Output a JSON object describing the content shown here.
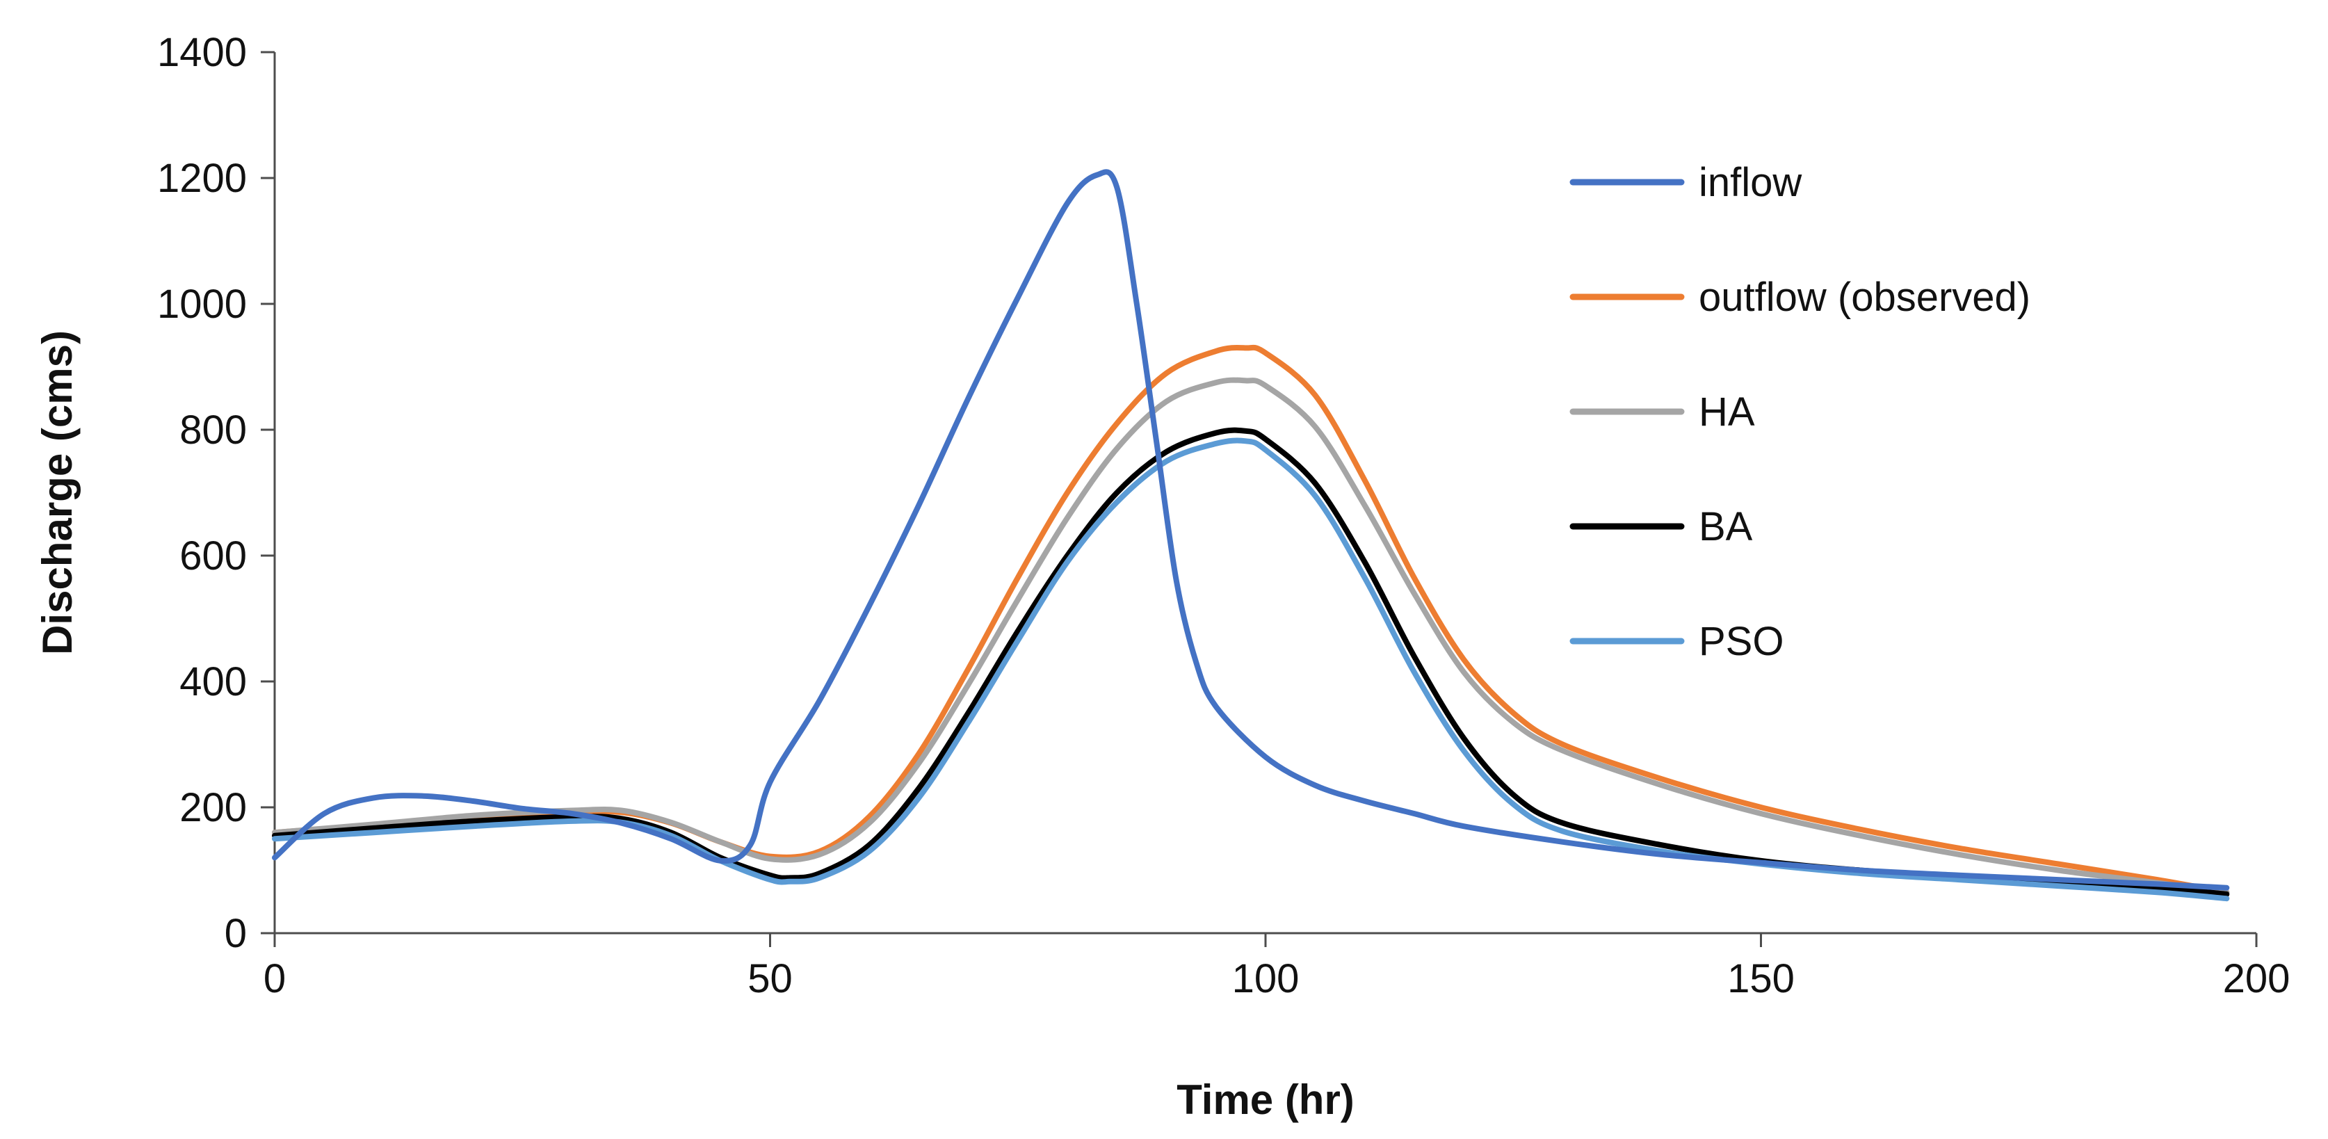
{
  "chart_data": {
    "type": "line",
    "title": "",
    "xlabel": "Time (hr)",
    "ylabel": "Discharge (cms)",
    "xlim": [
      0,
      200
    ],
    "ylim": [
      0,
      1400
    ],
    "xticks": [
      0,
      50,
      100,
      150,
      200
    ],
    "yticks": [
      0,
      200,
      400,
      600,
      800,
      1000,
      1200,
      1400
    ],
    "grid": false,
    "legend_position": "right",
    "series": [
      {
        "name": "inflow",
        "color": "#4472c4",
        "x": [
          0,
          5,
          10,
          15,
          20,
          25,
          30,
          35,
          40,
          45,
          48,
          50,
          55,
          60,
          65,
          70,
          75,
          80,
          83,
          85,
          87,
          89,
          91,
          93,
          95,
          100,
          105,
          110,
          115,
          120,
          130,
          140,
          150,
          160,
          170,
          180,
          190,
          197
        ],
        "y": [
          120,
          190,
          215,
          218,
          210,
          198,
          190,
          175,
          150,
          115,
          140,
          240,
          370,
          520,
          680,
          850,
          1010,
          1160,
          1205,
          1185,
          1000,
          780,
          560,
          430,
          360,
          280,
          235,
          210,
          190,
          170,
          145,
          125,
          112,
          100,
          92,
          85,
          78,
          72
        ]
      },
      {
        "name": "outflow (observed)",
        "color": "#ed7d31",
        "x": [
          0,
          10,
          20,
          30,
          35,
          40,
          45,
          50,
          55,
          60,
          65,
          70,
          75,
          80,
          85,
          90,
          95,
          98,
          100,
          105,
          110,
          115,
          120,
          125,
          130,
          140,
          150,
          160,
          170,
          180,
          190,
          197
        ],
        "y": [
          160,
          172,
          185,
          192,
          192,
          175,
          145,
          122,
          130,
          185,
          285,
          420,
          565,
          700,
          810,
          890,
          925,
          930,
          922,
          855,
          720,
          565,
          435,
          350,
          300,
          245,
          200,
          165,
          135,
          110,
          85,
          65
        ]
      },
      {
        "name": "HA",
        "color": "#a5a5a5",
        "x": [
          0,
          10,
          20,
          30,
          35,
          40,
          45,
          50,
          55,
          60,
          65,
          70,
          75,
          80,
          85,
          90,
          95,
          98,
          100,
          105,
          110,
          115,
          120,
          125,
          130,
          140,
          150,
          160,
          170,
          180,
          190,
          197
        ],
        "y": [
          160,
          173,
          187,
          195,
          195,
          176,
          145,
          118,
          125,
          175,
          270,
          395,
          530,
          660,
          770,
          845,
          875,
          878,
          870,
          805,
          680,
          540,
          415,
          335,
          290,
          235,
          190,
          155,
          125,
          100,
          80,
          65
        ]
      },
      {
        "name": "BA",
        "color": "#000000",
        "x": [
          0,
          10,
          20,
          30,
          35,
          40,
          45,
          50,
          52,
          55,
          60,
          65,
          70,
          75,
          80,
          85,
          90,
          95,
          98,
          100,
          105,
          110,
          115,
          120,
          125,
          130,
          140,
          150,
          160,
          170,
          180,
          190,
          197
        ],
        "y": [
          155,
          167,
          178,
          185,
          182,
          160,
          120,
          92,
          88,
          95,
          140,
          230,
          350,
          480,
          600,
          700,
          765,
          795,
          798,
          785,
          715,
          590,
          440,
          310,
          220,
          175,
          140,
          115,
          100,
          90,
          80,
          72,
          62
        ]
      },
      {
        "name": "PSO",
        "color": "#5b9bd5",
        "x": [
          0,
          10,
          20,
          30,
          35,
          40,
          45,
          50,
          52,
          55,
          60,
          65,
          70,
          75,
          80,
          85,
          90,
          95,
          98,
          100,
          105,
          110,
          115,
          120,
          125,
          130,
          140,
          150,
          160,
          170,
          180,
          190,
          197
        ],
        "y": [
          150,
          160,
          170,
          178,
          176,
          155,
          115,
          85,
          82,
          88,
          130,
          215,
          335,
          465,
          590,
          685,
          750,
          778,
          782,
          768,
          695,
          565,
          415,
          290,
          205,
          162,
          130,
          110,
          95,
          85,
          75,
          65,
          55
        ]
      }
    ]
  }
}
